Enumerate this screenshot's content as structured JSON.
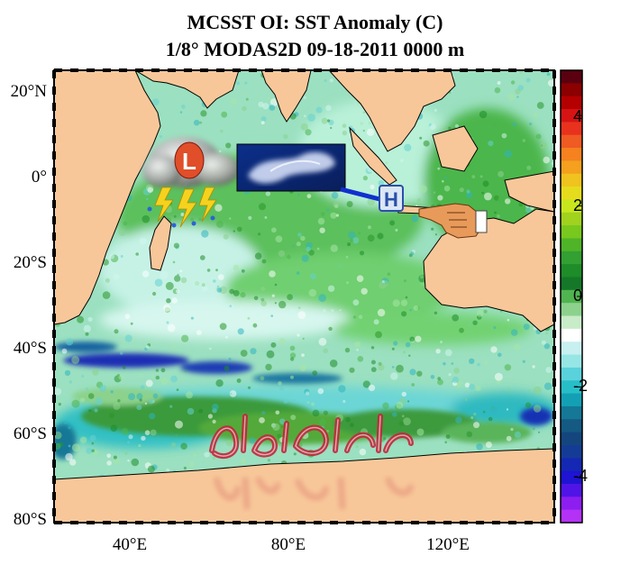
{
  "title_line1": "MCSST OI:  SST Anomaly (C)",
  "title_line2": "1/8° MODAS2D 09-18-2011 0000 m",
  "lat_labels": [
    "20°N",
    "0°",
    "20°S",
    "40°S",
    "60°S",
    "80°S"
  ],
  "lon_labels": [
    "40°E",
    "80°E",
    "120°E"
  ],
  "colorbar": {
    "ticks": [
      "4",
      "2",
      "0",
      "-2",
      "-4"
    ],
    "range": [
      -5,
      5
    ],
    "colors": [
      "#5a0010",
      "#8b0000",
      "#b40000",
      "#d61414",
      "#e8321e",
      "#f05a23",
      "#f5821e",
      "#f5a01e",
      "#f0c31e",
      "#e6dc1e",
      "#c8e61e",
      "#a0d21e",
      "#78c81e",
      "#50b428",
      "#32a032",
      "#1e8c28",
      "#147828",
      "#50b450",
      "#8cd28c",
      "#c8ebc8",
      "#ffffff",
      "#c8f0f0",
      "#96e6e6",
      "#5ad2dc",
      "#28bec8",
      "#14a0b4",
      "#147896",
      "#145a82",
      "#14467d",
      "#143c96",
      "#1428b4",
      "#1e14d2",
      "#5014e6",
      "#8c1ef0",
      "#b432f5"
    ]
  },
  "overlay_icons": [
    "storm-cloud-low-icon",
    "satellite-cloud-image-icon",
    "high-pressure-icon",
    "pointing-hand-icon"
  ],
  "overlay_letters": {
    "low": "L",
    "high": "H"
  },
  "colors": {
    "land": "#f7c799",
    "ocean_base": "#b4ecd2",
    "green": "#3ca03c",
    "cyan": "#37c8c8"
  }
}
